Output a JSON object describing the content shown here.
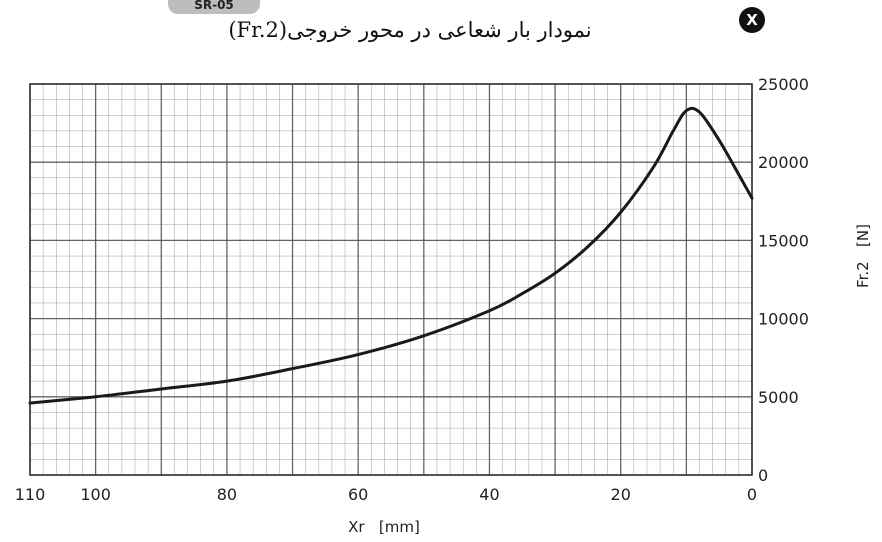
{
  "header": {
    "tab_label": "SR-05",
    "badge_letter": "X"
  },
  "chart_data": {
    "type": "line",
    "title": "نمودار بار شعاعی  در محور خروجی(Fr.2)",
    "xlabel": "Xr   [mm]",
    "ylabel": "Fr.2   [N]",
    "xlim": [
      110,
      0
    ],
    "ylim": [
      0,
      25000
    ],
    "x_ticks": [
      110,
      100,
      80,
      60,
      40,
      20,
      0
    ],
    "y_ticks": [
      0,
      5000,
      10000,
      15000,
      20000,
      25000
    ],
    "grid": true,
    "y_axis_side": "right",
    "series": [
      {
        "x": [
          110,
          100,
          90,
          80,
          70,
          60,
          50,
          40,
          35,
          30,
          25,
          20,
          15,
          12,
          10,
          8,
          5,
          2,
          0
        ],
        "values": [
          4600,
          5000,
          5500,
          6000,
          6800,
          7700,
          8900,
          10500,
          11600,
          12900,
          14600,
          16800,
          19700,
          22000,
          23300,
          23200,
          21400,
          19200,
          17700
        ]
      }
    ],
    "line_color": "#1a1a1a",
    "grid_color": "#555555"
  }
}
